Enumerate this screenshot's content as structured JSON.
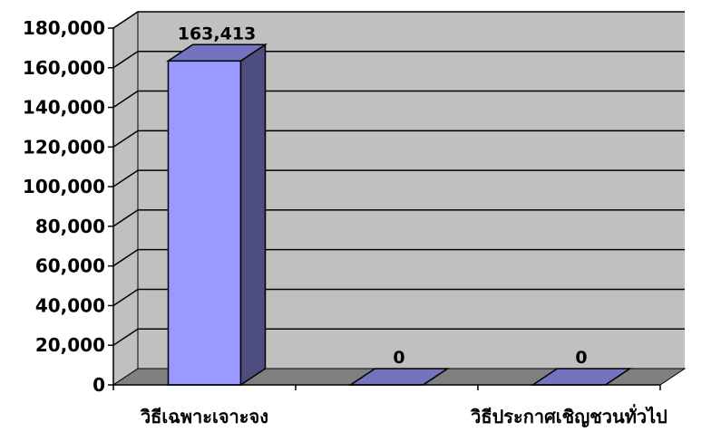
{
  "chart_data": {
    "type": "bar",
    "style": "3d-column",
    "categories": [
      "วิธีเฉพาะเจาะจง",
      "",
      "วิธีประกาศเชิญชวนทั่วไป"
    ],
    "values": [
      163413,
      0,
      0
    ],
    "data_labels": [
      "163,413",
      "0",
      "0"
    ],
    "y_ticks": [
      "0",
      "20,000",
      "40,000",
      "60,000",
      "80,000",
      "100,000",
      "120,000",
      "140,000",
      "160,000",
      "180,000"
    ],
    "ylim": [
      0,
      180000
    ],
    "grid": true,
    "legend": "none"
  },
  "colors": {
    "wall": "#c0c0c0",
    "floor": "#808080",
    "bar_front": "#9999ff",
    "bar_side": "#4d4d80",
    "bar_top": "#7373bf",
    "gridline": "#000000",
    "text": "#000000"
  }
}
